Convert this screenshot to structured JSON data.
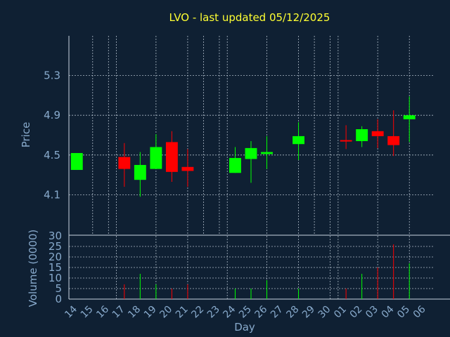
{
  "chart_data": {
    "type": "candlestick",
    "title": "LVO - last updated 05/12/2025",
    "price_axis": {
      "label": "Price",
      "ticks": [
        "5.3",
        "4.9",
        "4.5",
        "4.1"
      ],
      "tick_values": [
        5.3,
        4.9,
        4.5,
        4.1
      ],
      "range": [
        3.7,
        5.7
      ]
    },
    "volume_axis": {
      "label": "Volume (0000)",
      "ticks": [
        "30",
        "25",
        "20",
        "15",
        "10",
        "5",
        "0"
      ],
      "tick_values": [
        30,
        25,
        20,
        15,
        10,
        5,
        0
      ],
      "range": [
        0,
        30
      ]
    },
    "xlabel": "Day",
    "x_ticks": [
      "14",
      "15",
      "16",
      "17",
      "18",
      "19",
      "20",
      "21",
      "22",
      "23",
      "24",
      "25",
      "26",
      "27",
      "28",
      "29",
      "30",
      "01",
      "02",
      "03",
      "04",
      "05",
      "06"
    ],
    "grid": true,
    "up_color": "#00ff00",
    "down_color": "#ff0000",
    "candles": [
      {
        "day": "14",
        "open": 4.35,
        "high": 4.52,
        "low": 4.35,
        "close": 4.52,
        "volume": 0
      },
      {
        "day": "17",
        "open": 4.48,
        "high": 4.62,
        "low": 4.18,
        "close": 4.36,
        "volume": 7
      },
      {
        "day": "18",
        "open": 4.25,
        "high": 4.53,
        "low": 4.08,
        "close": 4.4,
        "volume": 12
      },
      {
        "day": "19",
        "open": 4.36,
        "high": 4.71,
        "low": 4.36,
        "close": 4.58,
        "volume": 7
      },
      {
        "day": "20",
        "open": 4.63,
        "high": 4.74,
        "low": 4.23,
        "close": 4.33,
        "volume": 5
      },
      {
        "day": "21",
        "open": 4.38,
        "high": 4.56,
        "low": 4.18,
        "close": 4.34,
        "volume": 7
      },
      {
        "day": "24",
        "open": 4.32,
        "high": 4.58,
        "low": 4.32,
        "close": 4.47,
        "volume": 5
      },
      {
        "day": "25",
        "open": 4.46,
        "high": 4.64,
        "low": 4.22,
        "close": 4.57,
        "volume": 5
      },
      {
        "day": "26",
        "open": 4.51,
        "high": 4.69,
        "low": 4.36,
        "close": 4.53,
        "volume": 9
      },
      {
        "day": "28",
        "open": 4.61,
        "high": 4.83,
        "low": 4.45,
        "close": 4.69,
        "volume": 5
      },
      {
        "day": "01",
        "open": 4.65,
        "high": 4.8,
        "low": 4.56,
        "close": 4.64,
        "volume": 5
      },
      {
        "day": "02",
        "open": 4.64,
        "high": 4.79,
        "low": 4.58,
        "close": 4.76,
        "volume": 12
      },
      {
        "day": "03",
        "open": 4.74,
        "high": 4.86,
        "low": 4.57,
        "close": 4.69,
        "volume": 15
      },
      {
        "day": "04",
        "open": 4.69,
        "high": 4.95,
        "low": 4.49,
        "close": 4.6,
        "volume": 26
      },
      {
        "day": "05",
        "open": 4.86,
        "high": 5.09,
        "low": 4.63,
        "close": 4.9,
        "volume": 17
      }
    ]
  }
}
